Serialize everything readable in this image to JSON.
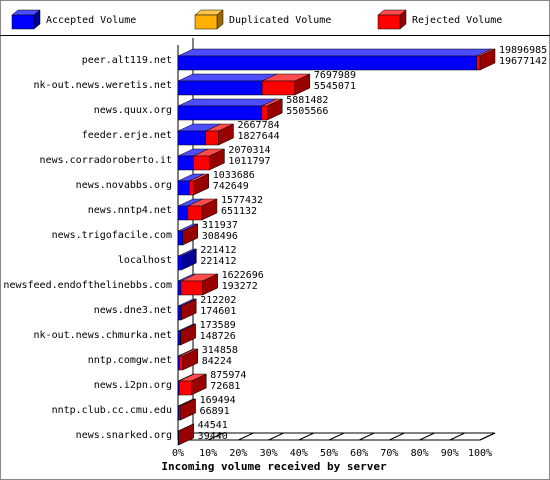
{
  "chart_data": {
    "type": "bar",
    "orientation": "horizontal",
    "stacked": true,
    "xlabel": "Incoming volume received by server",
    "categories": [
      "peer.alt119.net",
      "nk-out.news.weretis.net",
      "news.quux.org",
      "feeder.erje.net",
      "news.corradoroberto.it",
      "news.novabbs.org",
      "news.nntp4.net",
      "news.trigofacile.com",
      "localhost",
      "newsfeed.endofthelinebbs.com",
      "news.dne3.net",
      "nk-out.news.chmurka.net",
      "nntp.comgw.net",
      "news.i2pn.org",
      "nntp.club.cc.cmu.edu",
      "news.snarked.org"
    ],
    "totals": [
      19896985,
      7697989,
      5881482,
      2667784,
      2070314,
      1033686,
      1577432,
      311937,
      221412,
      1622696,
      212202,
      173589,
      314858,
      875974,
      169494,
      44541
    ],
    "series": [
      {
        "name": "Accepted Volume",
        "color": "#0000ff",
        "values": [
          19677142,
          5545071,
          5505566,
          1827644,
          1011797,
          742649,
          651132,
          308496,
          221412,
          193272,
          174601,
          148726,
          84224,
          72681,
          66891,
          39440
        ]
      },
      {
        "name": "Duplicated Volume",
        "color": "#ffb000",
        "values": [
          0,
          0,
          0,
          0,
          0,
          0,
          0,
          0,
          0,
          0,
          0,
          0,
          0,
          0,
          0,
          0
        ]
      },
      {
        "name": "Rejected Volume",
        "color": "#ff0000",
        "values": [
          219843,
          2152918,
          375916,
          840140,
          1058517,
          291037,
          926300,
          3441,
          0,
          1429424,
          37601,
          24863,
          230634,
          803293,
          102603,
          5101
        ]
      }
    ],
    "xlim": [
      0,
      19896985
    ],
    "xticks": [
      {
        "value": 0,
        "label": "0%"
      },
      {
        "value": 1989698.5,
        "label": "10%"
      },
      {
        "value": 3979397,
        "label": "20%"
      },
      {
        "value": 5969095.5,
        "label": "30%"
      },
      {
        "value": 7958794,
        "label": "40%"
      },
      {
        "value": 9948492.5,
        "label": "50%"
      },
      {
        "value": 11938191,
        "label": "60%"
      },
      {
        "value": 13927889.5,
        "label": "70%"
      },
      {
        "value": 15917588,
        "label": "80%"
      },
      {
        "value": 17907286.5,
        "label": "90%"
      },
      {
        "value": 19896985,
        "label": "100%"
      }
    ]
  }
}
